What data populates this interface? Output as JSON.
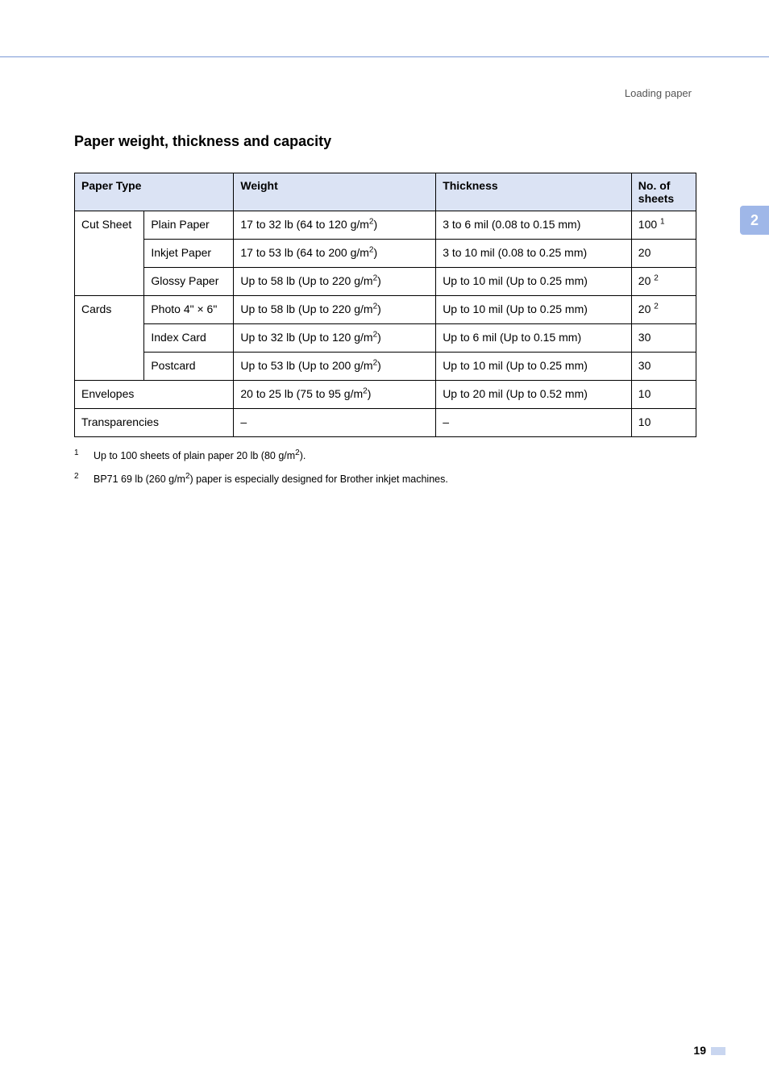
{
  "running_head": "Loading paper",
  "side_tab": "2",
  "section_title": "Paper weight, thickness and capacity",
  "table": {
    "headers": {
      "paper_type": "Paper Type",
      "weight": "Weight",
      "thickness": "Thickness",
      "sheets": "No. of sheets"
    },
    "groups": {
      "cut_sheet": "Cut Sheet",
      "cards": "Cards",
      "envelopes": "Envelopes",
      "transparencies": "Transparencies"
    },
    "rows": {
      "plain_paper": {
        "subtype": "Plain Paper",
        "weight": "17 to 32 lb (64 to 120 g/m",
        "thickness": "3 to 6 mil (0.08 to 0.15 mm)",
        "sheets": "100",
        "sheets_sup": "1"
      },
      "inkjet_paper": {
        "subtype": "Inkjet Paper",
        "weight": "17 to 53 lb (64 to 200 g/m",
        "thickness": "3 to 10 mil (0.08 to 0.25 mm)",
        "sheets": "20"
      },
      "glossy_paper": {
        "subtype": "Glossy Paper",
        "weight": "Up to 58 lb (Up to 220 g/m",
        "thickness": "Up to 10 mil (Up to 0.25 mm)",
        "sheets": "20",
        "sheets_sup": "2"
      },
      "photo_4x6": {
        "subtype": "Photo 4\" × 6\"",
        "weight": "Up to 58 lb (Up to 220 g/m",
        "thickness": "Up to 10 mil (Up to 0.25 mm)",
        "sheets": "20",
        "sheets_sup": "2"
      },
      "index_card": {
        "subtype": "Index Card",
        "weight": "Up to 32 lb (Up to 120 g/m",
        "thickness": "Up to 6 mil (Up to 0.15 mm)",
        "sheets": "30"
      },
      "postcard": {
        "subtype": "Postcard",
        "weight": "Up to 53 lb (Up to 200 g/m",
        "thickness": "Up to 10 mil (Up to 0.25 mm)",
        "sheets": "30"
      },
      "envelopes": {
        "weight": "20 to 25 lb (75 to 95 g/m",
        "thickness": "Up to 20 mil (Up to 0.52 mm)",
        "sheets": "10"
      },
      "transparencies": {
        "weight": "–",
        "thickness": "–",
        "sheets": "10"
      }
    }
  },
  "footnotes": {
    "fn1_num": "1",
    "fn1_text_a": "Up to 100 sheets of plain paper 20 lb (80 g/m",
    "fn1_text_b": ").",
    "fn2_num": "2",
    "fn2_text_a": "BP71 69 lb (260 g/m",
    "fn2_text_b": ") paper is especially designed for Brother inkjet machines."
  },
  "page_number": "19"
}
